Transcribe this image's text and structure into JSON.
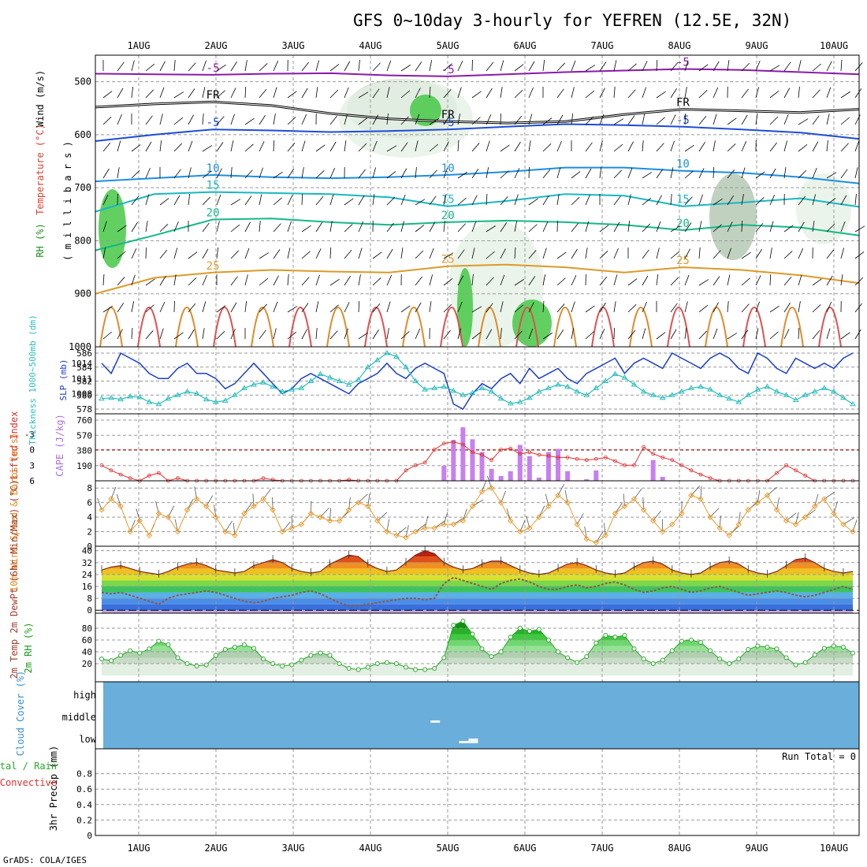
{
  "title": "GFS 0~10day 3-hourly for YEFREN (12.5E, 32N)",
  "footer": "GrADS: COLA/IGES",
  "dates": [
    "1AUG",
    "2AUG",
    "3AUG",
    "4AUG",
    "5AUG",
    "6AUG",
    "7AUG",
    "8AUG",
    "9AUG",
    "10AUG"
  ],
  "colors": {
    "gridline": "#999999",
    "rh_light": "#e6f2e6",
    "rh_mid": "#b5c9b5",
    "rh_green": "#45c845",
    "slp": "#1a3fcc",
    "thickness": "#2bbdbd",
    "cape": "#c87ff0",
    "lifted": "#e03030",
    "wind": "#e89b2e",
    "temp2m": "#7a2a1a",
    "dewpt": "#8b5a4a",
    "rh2m": "#2aa82a",
    "cloud": "#6aaedb",
    "purple": "#8b1aa8",
    "fr": "#000000",
    "blue5": "#1c4cd6",
    "blue10": "#1c8ee0",
    "teal15": "#18b8c0",
    "green20": "#14b888",
    "orange25": "#dc9a28"
  },
  "chart_data": [
    {
      "type": "contour",
      "name": "upper-air",
      "ylabel_parts": [
        "Wind (m/s)",
        "Temperature (°C)",
        "RH (%)"
      ],
      "ylabel_unit": "( m i l l i b a r s )",
      "ylim": [
        1000,
        450
      ],
      "yticks": [
        500,
        600,
        700,
        800,
        900,
        1000
      ],
      "isotherms": [
        {
          "label": "-5",
          "pressure": [
            485,
            486,
            487,
            485,
            484,
            488,
            490,
            486,
            482,
            479,
            476,
            478,
            482,
            486
          ]
        },
        {
          "label": "FR",
          "pressure": [
            548,
            542,
            538,
            545,
            560,
            570,
            575,
            578,
            575,
            562,
            552,
            555,
            558,
            552
          ]
        },
        {
          "label": "-5",
          "pressure": [
            612,
            600,
            590,
            592,
            595,
            593,
            590,
            585,
            580,
            582,
            585,
            590,
            596,
            608
          ]
        },
        {
          "label": "10",
          "pressure": [
            688,
            682,
            676,
            680,
            682,
            680,
            676,
            670,
            662,
            662,
            668,
            672,
            680,
            692
          ]
        },
        {
          "label": "15",
          "pressure": [
            745,
            712,
            708,
            710,
            712,
            718,
            735,
            725,
            712,
            715,
            735,
            728,
            720,
            736
          ]
        },
        {
          "label": "20",
          "pressure": [
            818,
            790,
            760,
            758,
            765,
            770,
            765,
            762,
            765,
            770,
            780,
            770,
            775,
            790
          ]
        },
        {
          "label": "25",
          "pressure": [
            900,
            870,
            860,
            855,
            858,
            860,
            848,
            845,
            850,
            860,
            850,
            855,
            865,
            880
          ]
        }
      ]
    },
    {
      "type": "line",
      "name": "slp-thickness",
      "ylabel_left": "Thickness 1000~500mb (dm)",
      "ylabel_right": "SLP (mb)",
      "yticks_left": [
        578,
        580,
        582,
        584,
        586
      ],
      "yticks_right": [
        1008,
        1011,
        1014
      ],
      "series": [
        {
          "name": "SLP (mb)",
          "values": [
            1014,
            1012,
            1016,
            1015,
            1014,
            1012,
            1011,
            1011,
            1013,
            1014,
            1012,
            1012,
            1011,
            1009,
            1010,
            1012,
            1014,
            1012,
            1010,
            1008,
            1009,
            1011,
            1012,
            1011,
            1010,
            1009,
            1008,
            1010,
            1011,
            1012,
            1014,
            1012,
            1011,
            1013,
            1014,
            1013,
            1012,
            1006,
            1005,
            1008,
            1010,
            1009,
            1011,
            1012,
            1010,
            1013,
            1011,
            1012,
            1013,
            1011,
            1010,
            1012,
            1013,
            1014,
            1015,
            1012,
            1014,
            1015,
            1014,
            1013,
            1016,
            1015,
            1014,
            1013,
            1015,
            1016,
            1015,
            1013,
            1012,
            1016,
            1015,
            1013,
            1012,
            1015,
            1014,
            1013,
            1014,
            1013,
            1015,
            1016
          ]
        },
        {
          "name": "Thickness (dm)",
          "values": [
            579.5,
            579.6,
            579.4,
            579.8,
            579.7,
            579.0,
            578.7,
            579.5,
            580.0,
            580.5,
            580.2,
            579.4,
            579.0,
            579.2,
            580.0,
            581.0,
            581.5,
            581.8,
            581.2,
            580.5,
            580.8,
            581.0,
            582.0,
            583.0,
            582.5,
            582.0,
            581.5,
            582.2,
            584.0,
            585.0,
            586.0,
            585.5,
            584.0,
            582.0,
            580.8,
            581.0,
            581.2,
            580.6,
            580.0,
            580.3,
            581.0,
            580.5,
            579.5,
            578.8,
            579.0,
            579.6,
            580.5,
            581.0,
            581.5,
            581.2,
            580.5,
            580.0,
            581.0,
            582.0,
            583.0,
            582.5,
            581.5,
            580.5,
            580.0,
            579.6,
            580.0,
            580.5,
            581.0,
            581.2,
            580.8,
            580.0,
            579.5,
            579.0,
            580.0,
            580.8,
            581.2,
            580.5,
            580.0,
            579.3,
            580.0,
            580.5,
            581.0,
            580.5,
            579.6,
            578.7
          ]
        }
      ]
    },
    {
      "type": "bar",
      "name": "cape-lifted-index",
      "ylabel_left": "Lifted Index",
      "ylabel_right": "CAPE (J/kg)",
      "yticks_left": [
        -3,
        0,
        3,
        6
      ],
      "yticks_right": [
        190,
        380,
        570,
        760
      ],
      "series": [
        {
          "name": "CAPE (J/kg)",
          "values": [
            {
              "step": 36,
              "v": 190
            },
            {
              "step": 37,
              "v": 510
            },
            {
              "step": 38,
              "v": 670
            },
            {
              "step": 39,
              "v": 520
            },
            {
              "step": 40,
              "v": 360
            },
            {
              "step": 41,
              "v": 150
            },
            {
              "step": 42,
              "v": 60
            },
            {
              "step": 43,
              "v": 120
            },
            {
              "step": 44,
              "v": 450
            },
            {
              "step": 45,
              "v": 310
            },
            {
              "step": 46,
              "v": 40
            },
            {
              "step": 47,
              "v": 360
            },
            {
              "step": 48,
              "v": 400
            },
            {
              "step": 49,
              "v": 120
            },
            {
              "step": 51,
              "v": 20
            },
            {
              "step": 52,
              "v": 130
            },
            {
              "step": 58,
              "v": 260
            },
            {
              "step": 59,
              "v": 50
            }
          ]
        },
        {
          "name": "Lifted Index",
          "values": [
            3.0,
            4.0,
            4.8,
            5.5,
            6.0,
            5.0,
            4.5,
            6.0,
            5.5,
            6.0,
            6.0,
            6.0,
            6.0,
            6.0,
            6.0,
            6.0,
            6.0,
            5.5,
            5.8,
            6.0,
            6.0,
            6.0,
            6.0,
            6.0,
            6.0,
            6.0,
            5.8,
            6.0,
            6.0,
            6.0,
            6.0,
            6.0,
            4.0,
            3.0,
            2.5,
            0.0,
            -1.2,
            -1.5,
            -1.0,
            0.5,
            1.0,
            2.0,
            0.0,
            -0.2,
            0.8,
            0.5,
            1.0,
            1.2,
            1.5,
            1.5,
            1.8,
            2.0,
            1.8,
            1.5,
            2.2,
            3.0,
            3.0,
            -0.5,
            0.8,
            1.5,
            2.0,
            3.0,
            4.0,
            4.8,
            5.5,
            6.0,
            6.0,
            6.0,
            6.0,
            6.0,
            6.0,
            4.5,
            3.0,
            4.0,
            5.0,
            6.0,
            6.0,
            6.0,
            6.0,
            6.0
          ]
        }
      ]
    },
    {
      "type": "line",
      "name": "10m-wind",
      "ylabel": "10m Wind Speed & Barbs (m/s)",
      "yticks": [
        0,
        2,
        4,
        6,
        8
      ],
      "ylim": [
        0,
        9
      ],
      "series": [
        {
          "name": "Speed",
          "values": [
            5,
            6.5,
            5.5,
            2,
            3.5,
            1.5,
            4.5,
            4,
            2,
            5,
            6.5,
            5.5,
            4,
            2,
            1.5,
            4.5,
            5.5,
            6.5,
            5,
            2,
            2.5,
            3,
            4.5,
            4,
            3.5,
            3.5,
            5,
            6,
            5.5,
            3.5,
            2,
            1.5,
            1.2,
            2,
            2.5,
            2.5,
            3,
            3,
            3.5,
            5.5,
            7.5,
            8,
            6,
            3.5,
            2,
            2.5,
            4,
            5.5,
            7,
            6,
            3,
            1,
            0.5,
            1.5,
            4.5,
            5.5,
            6.5,
            5,
            3.5,
            2,
            3,
            4.5,
            7,
            6.5,
            4,
            2.5,
            1.5,
            3,
            5,
            6,
            7,
            5,
            3.5,
            3,
            4,
            5.5,
            6.5,
            4.5,
            3,
            2
          ]
        }
      ]
    },
    {
      "type": "area",
      "name": "2m-temp",
      "ylabel": "2m Temp 2m DewPt (6hr Min/Max) (°C)",
      "yticks": [
        0,
        8,
        16,
        24,
        32,
        40
      ],
      "ylim": [
        -2,
        43
      ],
      "series": [
        {
          "name": "2m Temp",
          "values": [
            27,
            29,
            30,
            28,
            26,
            25,
            24,
            26,
            29,
            31,
            32,
            30,
            27,
            26,
            25,
            26,
            30,
            32,
            34,
            32,
            28,
            26,
            25,
            26,
            31,
            34,
            37,
            36,
            31,
            28,
            26,
            27,
            32,
            37,
            40,
            38,
            32,
            29,
            27,
            28,
            31,
            33,
            33,
            30,
            27,
            25,
            24,
            25,
            28,
            31,
            32,
            30,
            27,
            25,
            24,
            25,
            29,
            32,
            33,
            31,
            27,
            25,
            24,
            25,
            29,
            32,
            33,
            31,
            27,
            25,
            24,
            26,
            30,
            34,
            35,
            32,
            28,
            26,
            25,
            26
          ]
        },
        {
          "name": "2m DewPt",
          "values": [
            12,
            11,
            12,
            10,
            8,
            6,
            4,
            8,
            10,
            11,
            12,
            13,
            12,
            10,
            8,
            6,
            5,
            6,
            8,
            9,
            10,
            12,
            13,
            11,
            8,
            5,
            3,
            3,
            4,
            5,
            6,
            7,
            8,
            8,
            7,
            8,
            18,
            22,
            20,
            18,
            16,
            14,
            18,
            20,
            21,
            19,
            16,
            14,
            14,
            16,
            17,
            15,
            16,
            18,
            19,
            17,
            14,
            12,
            13,
            15,
            16,
            14,
            12,
            13,
            15,
            16,
            14,
            12,
            10,
            11,
            12,
            13,
            12,
            10,
            9,
            10,
            12,
            14,
            16,
            14
          ]
        }
      ]
    },
    {
      "type": "area",
      "name": "2m-rh",
      "ylabel": "2m RH (%)",
      "yticks": [
        20,
        40,
        60,
        80
      ],
      "ylim": [
        0,
        100
      ],
      "series": [
        {
          "name": "2m RH",
          "values": [
            28,
            25,
            34,
            42,
            38,
            45,
            58,
            52,
            30,
            20,
            16,
            18,
            34,
            44,
            48,
            52,
            46,
            28,
            20,
            16,
            18,
            26,
            34,
            38,
            34,
            20,
            12,
            10,
            14,
            20,
            22,
            20,
            14,
            10,
            10,
            12,
            30,
            85,
            92,
            70,
            45,
            32,
            40,
            65,
            80,
            75,
            78,
            60,
            40,
            30,
            22,
            32,
            55,
            68,
            65,
            68,
            45,
            28,
            20,
            26,
            42,
            58,
            60,
            56,
            42,
            28,
            20,
            28,
            44,
            50,
            48,
            45,
            30,
            18,
            22,
            35,
            46,
            50,
            48,
            38
          ]
        }
      ]
    },
    {
      "type": "bar",
      "name": "cloud-cover",
      "ylabel": "Cloud Cover (%)",
      "levels": [
        "high",
        "middle",
        "low"
      ],
      "series": [
        {
          "name": "middle",
          "values": [
            {
              "step": 35,
              "v": 1
            }
          ]
        },
        {
          "name": "low",
          "values": [
            {
              "step": 38,
              "v": 1
            },
            {
              "step": 39,
              "v": 2
            }
          ]
        }
      ]
    },
    {
      "type": "bar",
      "name": "precip",
      "ylabel": "3hr Precip (mm)",
      "legend": [
        "Total / Rain",
        "Convective"
      ],
      "run_total": "Run Total = 0",
      "yticks": [
        "0",
        "0.2",
        "0.4",
        "0.6",
        "0.8"
      ],
      "ylim": [
        0,
        1.0
      ],
      "values": []
    }
  ]
}
